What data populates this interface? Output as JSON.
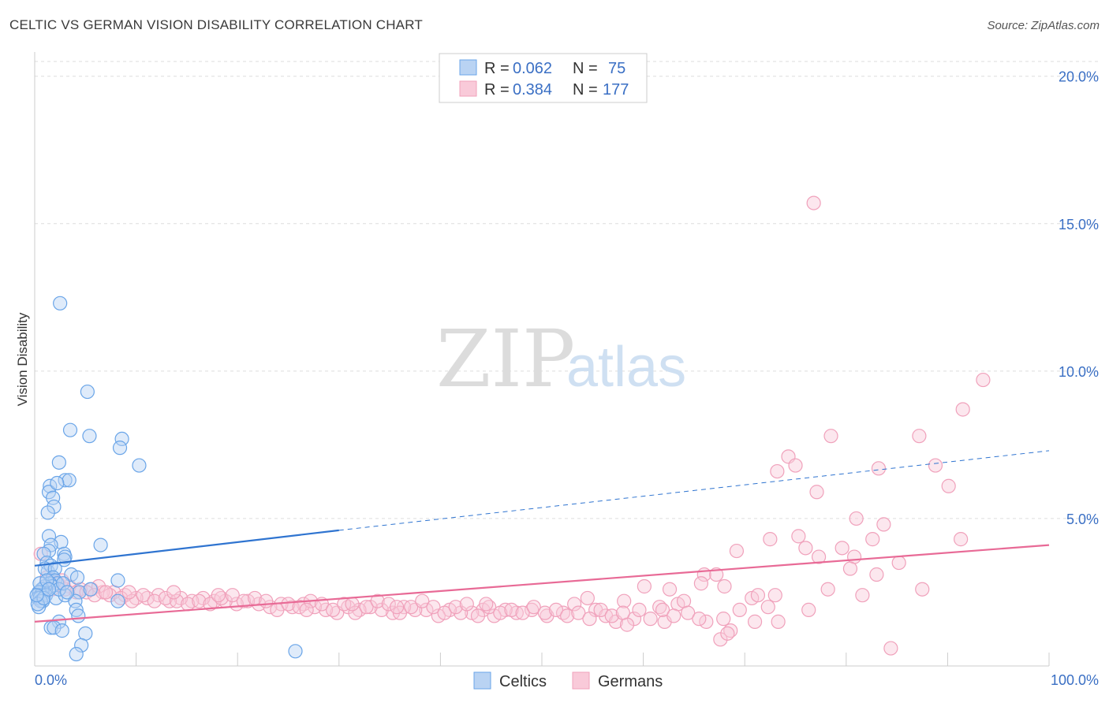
{
  "header": {
    "title": "CELTIC VS GERMAN VISION DISABILITY CORRELATION CHART",
    "source": "Source: ZipAtlas.com"
  },
  "watermark": {
    "zip": "ZIP",
    "atlas": "atlas"
  },
  "legend_top": {
    "rows": [
      {
        "r_label": "R =",
        "r_value": "0.062",
        "n_label": "N =",
        "n_value": "75",
        "color": "#6aa5e8"
      },
      {
        "r_label": "R =",
        "r_value": "0.384",
        "n_label": "N =",
        "n_value": "177",
        "color": "#f0a1bb"
      }
    ]
  },
  "legend_bottom": {
    "items": [
      "Celtics",
      "Germans"
    ]
  },
  "chart_data": {
    "type": "scatter",
    "title": "CELTIC VS GERMAN VISION DISABILITY CORRELATION CHART",
    "xlabel": "",
    "ylabel": "Vision Disability",
    "xlim": [
      0,
      100
    ],
    "ylim": [
      0,
      20.5
    ],
    "x_tick_labels": [
      "0.0%",
      "100.0%"
    ],
    "y_ticks": [
      5,
      10,
      15,
      20
    ],
    "y_tick_labels": [
      "5.0%",
      "10.0%",
      "15.0%",
      "20.0%"
    ],
    "grid": true,
    "legend": "top-center",
    "series": [
      {
        "name": "Celtics",
        "color": "#6aa5e8",
        "trend": {
          "x0": 0,
          "y0": 3.4,
          "x1": 30,
          "y1": 4.6,
          "dash_to": 100,
          "dash_y": 7.3
        },
        "points": [
          [
            2.5,
            12.3
          ],
          [
            5.2,
            9.3
          ],
          [
            3.5,
            8.0
          ],
          [
            5.4,
            7.8
          ],
          [
            8.6,
            7.7
          ],
          [
            8.4,
            7.4
          ],
          [
            10.3,
            6.8
          ],
          [
            2.4,
            6.9
          ],
          [
            1.5,
            6.1
          ],
          [
            1.4,
            5.9
          ],
          [
            3.0,
            6.3
          ],
          [
            3.4,
            6.3
          ],
          [
            2.2,
            6.2
          ],
          [
            1.8,
            5.7
          ],
          [
            1.9,
            5.4
          ],
          [
            1.3,
            5.2
          ],
          [
            1.4,
            4.4
          ],
          [
            2.6,
            4.2
          ],
          [
            1.6,
            4.1
          ],
          [
            1.4,
            3.9
          ],
          [
            0.9,
            3.8
          ],
          [
            2.9,
            3.8
          ],
          [
            3.0,
            3.7
          ],
          [
            2.9,
            3.6
          ],
          [
            6.5,
            4.1
          ],
          [
            1.2,
            3.5
          ],
          [
            1.3,
            3.2
          ],
          [
            1.6,
            3.4
          ],
          [
            1.0,
            3.3
          ],
          [
            2.0,
            3.3
          ],
          [
            1.8,
            3.0
          ],
          [
            3.6,
            3.1
          ],
          [
            4.2,
            3.0
          ],
          [
            2.0,
            2.9
          ],
          [
            2.2,
            2.8
          ],
          [
            1.5,
            2.8
          ],
          [
            1.7,
            2.7
          ],
          [
            1.0,
            2.7
          ],
          [
            0.8,
            2.6
          ],
          [
            0.7,
            2.6
          ],
          [
            0.5,
            2.5
          ],
          [
            0.4,
            2.5
          ],
          [
            0.6,
            2.4
          ],
          [
            0.3,
            2.3
          ],
          [
            0.5,
            2.3
          ],
          [
            1.1,
            2.4
          ],
          [
            0.8,
            2.2
          ],
          [
            0.6,
            2.2
          ],
          [
            0.4,
            2.0
          ],
          [
            0.3,
            2.1
          ],
          [
            0.9,
            2.3
          ],
          [
            2.1,
            2.3
          ],
          [
            3.0,
            2.4
          ],
          [
            4.4,
            2.5
          ],
          [
            5.5,
            2.6
          ],
          [
            8.2,
            2.2
          ],
          [
            8.2,
            2.9
          ],
          [
            2.4,
            2.6
          ],
          [
            4.0,
            2.2
          ],
          [
            4.1,
            1.9
          ],
          [
            4.3,
            1.7
          ],
          [
            2.4,
            1.5
          ],
          [
            1.6,
            1.3
          ],
          [
            1.9,
            1.3
          ],
          [
            2.7,
            1.2
          ],
          [
            5.0,
            1.1
          ],
          [
            4.6,
            0.7
          ],
          [
            4.1,
            0.4
          ],
          [
            25.7,
            0.5
          ],
          [
            0.5,
            2.8
          ],
          [
            1.2,
            2.9
          ],
          [
            2.8,
            2.8
          ],
          [
            1.4,
            2.6
          ],
          [
            0.2,
            2.4
          ],
          [
            3.2,
            2.5
          ]
        ]
      },
      {
        "name": "Germans",
        "color": "#f0a1bb",
        "trend": {
          "x0": 0,
          "y0": 1.5,
          "x1": 100,
          "y1": 4.1
        },
        "points": [
          [
            76.8,
            15.7
          ],
          [
            93.5,
            9.7
          ],
          [
            91.5,
            8.7
          ],
          [
            78.5,
            7.8
          ],
          [
            87.2,
            7.8
          ],
          [
            74.3,
            7.1
          ],
          [
            75.0,
            6.8
          ],
          [
            88.8,
            6.8
          ],
          [
            83.2,
            6.7
          ],
          [
            73.2,
            6.6
          ],
          [
            90.1,
            6.1
          ],
          [
            77.1,
            5.9
          ],
          [
            81.0,
            5.0
          ],
          [
            83.7,
            4.8
          ],
          [
            75.3,
            4.4
          ],
          [
            72.5,
            4.3
          ],
          [
            82.6,
            4.3
          ],
          [
            91.3,
            4.3
          ],
          [
            79.6,
            4.0
          ],
          [
            76.0,
            4.0
          ],
          [
            69.2,
            3.9
          ],
          [
            80.8,
            3.7
          ],
          [
            77.3,
            3.7
          ],
          [
            85.2,
            3.5
          ],
          [
            80.4,
            3.3
          ],
          [
            83.0,
            3.1
          ],
          [
            66.0,
            3.1
          ],
          [
            67.2,
            3.1
          ],
          [
            60.1,
            2.7
          ],
          [
            62.6,
            2.6
          ],
          [
            65.7,
            2.8
          ],
          [
            68.0,
            2.7
          ],
          [
            78.2,
            2.6
          ],
          [
            87.5,
            2.6
          ],
          [
            81.6,
            2.4
          ],
          [
            73.0,
            2.4
          ],
          [
            70.7,
            2.3
          ],
          [
            71.3,
            2.4
          ],
          [
            54.5,
            2.3
          ],
          [
            58.1,
            2.2
          ],
          [
            63.4,
            2.1
          ],
          [
            64.0,
            2.2
          ],
          [
            61.6,
            2.0
          ],
          [
            69.5,
            1.9
          ],
          [
            72.3,
            2.0
          ],
          [
            76.3,
            1.9
          ],
          [
            59.1,
            1.6
          ],
          [
            62.1,
            1.5
          ],
          [
            66.2,
            1.5
          ],
          [
            67.9,
            1.6
          ],
          [
            71.0,
            1.5
          ],
          [
            73.3,
            1.5
          ],
          [
            68.6,
            1.2
          ],
          [
            67.6,
            0.9
          ],
          [
            84.4,
            0.6
          ],
          [
            68.3,
            1.1
          ],
          [
            53.2,
            2.1
          ],
          [
            55.3,
            1.9
          ],
          [
            56.3,
            1.7
          ],
          [
            57.3,
            1.5
          ],
          [
            58.4,
            1.4
          ],
          [
            52.1,
            1.8
          ],
          [
            50.5,
            1.7
          ],
          [
            49.0,
            1.9
          ],
          [
            47.5,
            1.8
          ],
          [
            46.4,
            1.9
          ],
          [
            45.3,
            1.7
          ],
          [
            44.2,
            1.9
          ],
          [
            43.1,
            1.8
          ],
          [
            42.0,
            1.8
          ],
          [
            40.9,
            1.9
          ],
          [
            39.8,
            1.7
          ],
          [
            38.6,
            1.9
          ],
          [
            37.5,
            1.9
          ],
          [
            36.4,
            2.0
          ],
          [
            35.3,
            1.8
          ],
          [
            34.2,
            1.9
          ],
          [
            33.1,
            2.0
          ],
          [
            32.0,
            1.9
          ],
          [
            30.9,
            2.0
          ],
          [
            29.8,
            1.8
          ],
          [
            28.7,
            1.9
          ],
          [
            27.6,
            2.0
          ],
          [
            26.5,
            2.1
          ],
          [
            25.4,
            2.0
          ],
          [
            24.3,
            2.1
          ],
          [
            23.2,
            2.0
          ],
          [
            22.1,
            2.1
          ],
          [
            21.0,
            2.2
          ],
          [
            19.9,
            2.1
          ],
          [
            18.8,
            2.2
          ],
          [
            17.7,
            2.2
          ],
          [
            16.6,
            2.3
          ],
          [
            15.5,
            2.2
          ],
          [
            14.4,
            2.3
          ],
          [
            13.3,
            2.2
          ],
          [
            12.2,
            2.4
          ],
          [
            11.1,
            2.3
          ],
          [
            10.0,
            2.3
          ],
          [
            8.9,
            2.4
          ],
          [
            7.8,
            2.5
          ],
          [
            6.7,
            2.5
          ],
          [
            5.6,
            2.6
          ],
          [
            4.5,
            2.6
          ],
          [
            3.4,
            2.7
          ],
          [
            2.3,
            2.8
          ],
          [
            1.2,
            3.0
          ],
          [
            0.6,
            3.8
          ],
          [
            1.8,
            2.9
          ],
          [
            3.0,
            2.6
          ],
          [
            4.1,
            2.5
          ],
          [
            6.3,
            2.7
          ],
          [
            7.4,
            2.4
          ],
          [
            8.5,
            2.3
          ],
          [
            9.6,
            2.2
          ],
          [
            10.7,
            2.4
          ],
          [
            11.8,
            2.2
          ],
          [
            12.9,
            2.3
          ],
          [
            14.0,
            2.2
          ],
          [
            15.1,
            2.1
          ],
          [
            16.2,
            2.2
          ],
          [
            17.3,
            2.1
          ],
          [
            18.4,
            2.3
          ],
          [
            19.5,
            2.4
          ],
          [
            20.6,
            2.2
          ],
          [
            21.7,
            2.3
          ],
          [
            22.8,
            2.2
          ],
          [
            23.9,
            1.9
          ],
          [
            25.0,
            2.1
          ],
          [
            26.1,
            2.0
          ],
          [
            27.2,
            2.2
          ],
          [
            28.3,
            2.1
          ],
          [
            29.4,
            1.9
          ],
          [
            30.5,
            2.1
          ],
          [
            31.6,
            1.8
          ],
          [
            32.7,
            2.0
          ],
          [
            33.8,
            2.2
          ],
          [
            34.9,
            2.1
          ],
          [
            36.0,
            1.8
          ],
          [
            37.1,
            2.0
          ],
          [
            38.2,
            2.2
          ],
          [
            39.3,
            2.0
          ],
          [
            40.4,
            1.8
          ],
          [
            41.5,
            2.0
          ],
          [
            42.6,
            2.1
          ],
          [
            43.7,
            1.7
          ],
          [
            44.8,
            2.0
          ],
          [
            45.9,
            1.8
          ],
          [
            47.0,
            1.9
          ],
          [
            48.1,
            1.8
          ],
          [
            49.2,
            2.0
          ],
          [
            50.3,
            1.8
          ],
          [
            51.4,
            1.9
          ],
          [
            52.5,
            1.7
          ],
          [
            53.6,
            1.8
          ],
          [
            54.7,
            1.6
          ],
          [
            55.8,
            1.9
          ],
          [
            56.9,
            1.7
          ],
          [
            58.0,
            1.8
          ],
          [
            59.6,
            1.9
          ],
          [
            60.7,
            1.6
          ],
          [
            61.9,
            1.9
          ],
          [
            63.0,
            1.7
          ],
          [
            64.4,
            1.8
          ],
          [
            65.5,
            1.6
          ],
          [
            1.7,
            2.6
          ],
          [
            2.7,
            2.9
          ],
          [
            5.1,
            2.5
          ],
          [
            5.9,
            2.4
          ],
          [
            7.0,
            2.5
          ],
          [
            9.3,
            2.5
          ],
          [
            13.7,
            2.5
          ],
          [
            18.1,
            2.4
          ],
          [
            26.8,
            1.9
          ],
          [
            31.3,
            2.1
          ],
          [
            35.7,
            2.0
          ],
          [
            44.5,
            2.1
          ]
        ]
      }
    ]
  }
}
